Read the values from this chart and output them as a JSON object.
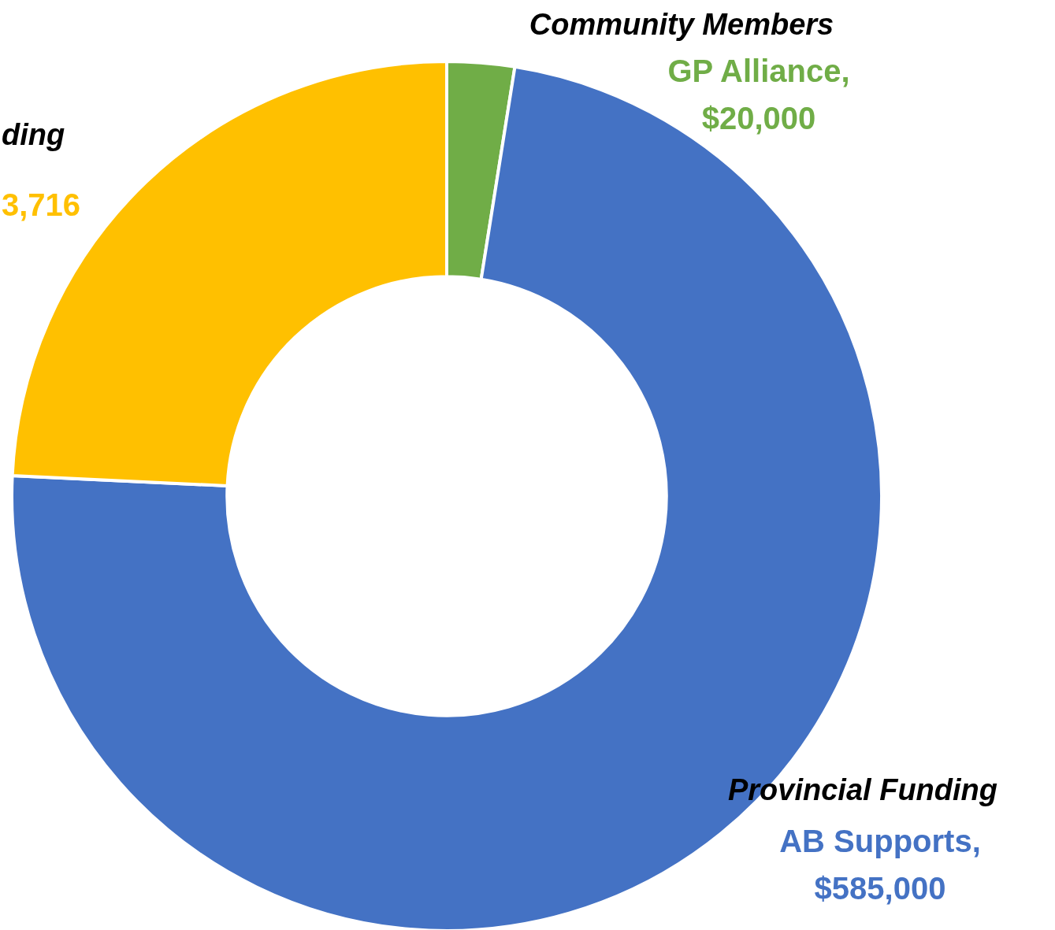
{
  "chart_data": {
    "type": "donut",
    "categories": [
      "Community Members",
      "Provincial Funding",
      "ding"
    ],
    "values": [
      20000,
      585000,
      193716
    ],
    "colors": [
      "#70ad47",
      "#4472c4",
      "#ffc000"
    ],
    "value_labels": [
      "GP Alliance,\n$20,000",
      "AB Supports,\n$585,000",
      null
    ],
    "annotations": [
      "3,716"
    ]
  }
}
